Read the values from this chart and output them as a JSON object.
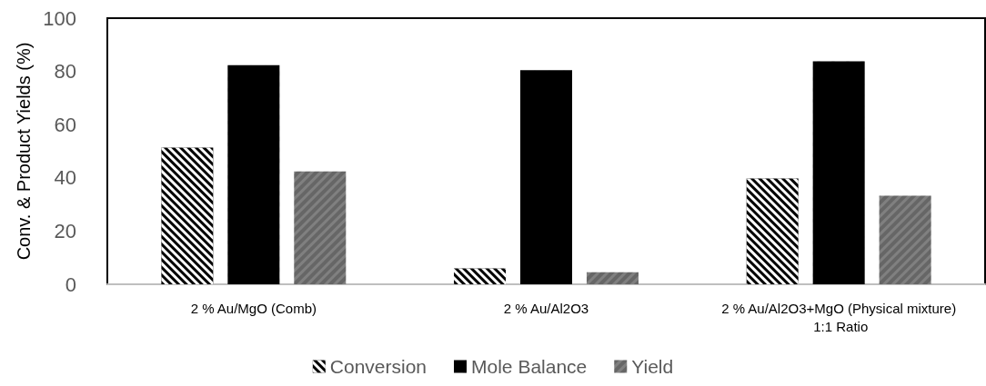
{
  "chart_data": {
    "type": "bar",
    "ylabel": "Conv. & Product Yields (%)",
    "categories": [
      "2 % Au/MgO (Comb)",
      "2 % Au/Al2O3",
      "2 % Au/Al2O3+MgO (Physical mixture) 1:1 Ratio"
    ],
    "series": [
      {
        "name": "Conversion",
        "color": "#000000",
        "values": [
          51.4,
          6,
          39.8
        ]
      },
      {
        "name": "Mole Balance",
        "color": "#000000",
        "values": [
          82.3,
          80.5,
          83.8
        ]
      },
      {
        "name": "Yield",
        "color": "#808080",
        "values": [
          42.4,
          4.5,
          33.3
        ]
      }
    ],
    "ylim": [
      0,
      100
    ],
    "yticks": [
      0,
      20,
      40,
      60,
      80,
      100
    ],
    "grid": false,
    "legend": "bottom"
  }
}
